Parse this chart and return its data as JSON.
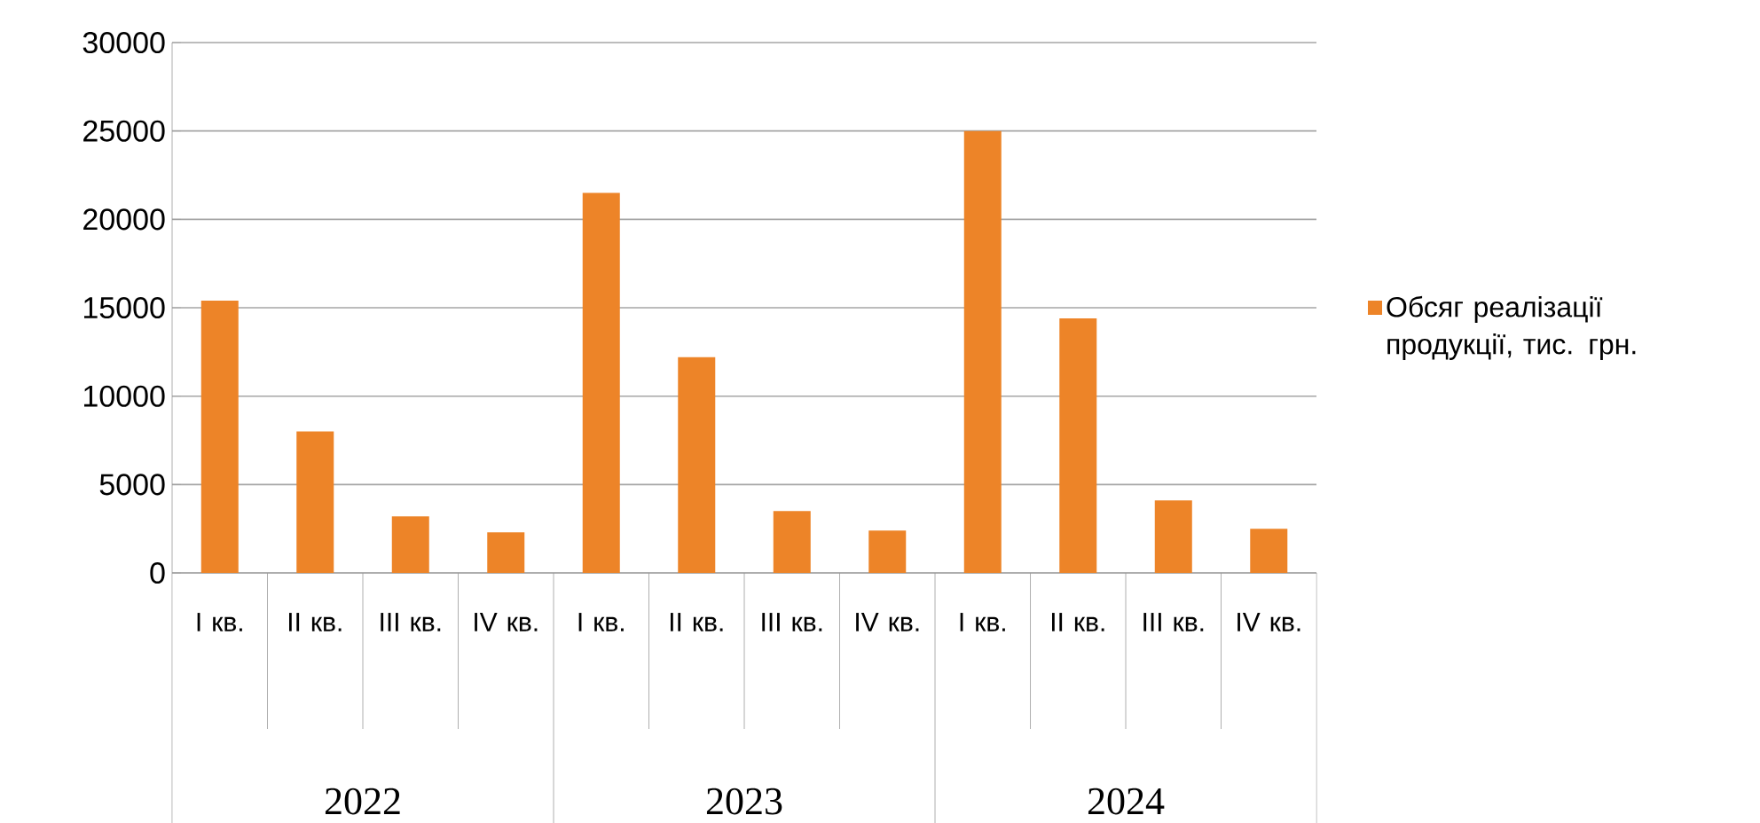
{
  "chart_data": {
    "type": "bar",
    "categories": [
      "I кв.",
      "II кв.",
      "III кв.",
      "IV кв.",
      "I кв.",
      "II кв.",
      "III кв.",
      "IV кв.",
      "I кв.",
      "II кв.",
      "III кв.",
      "IV кв."
    ],
    "series": [
      {
        "name": "Обсяг реалізації продукції, тис. грн.",
        "color": "#ed8428",
        "values": [
          15400,
          8000,
          3200,
          2300,
          21500,
          12200,
          3500,
          2400,
          25000,
          14400,
          4100,
          2500
        ]
      }
    ],
    "annotations": [
      "2022",
      "2023",
      "2024"
    ],
    "ylim": [
      0,
      30000
    ],
    "yticks": [
      0,
      5000,
      10000,
      15000,
      20000,
      25000,
      30000
    ],
    "grid": "y",
    "legend": "right"
  }
}
